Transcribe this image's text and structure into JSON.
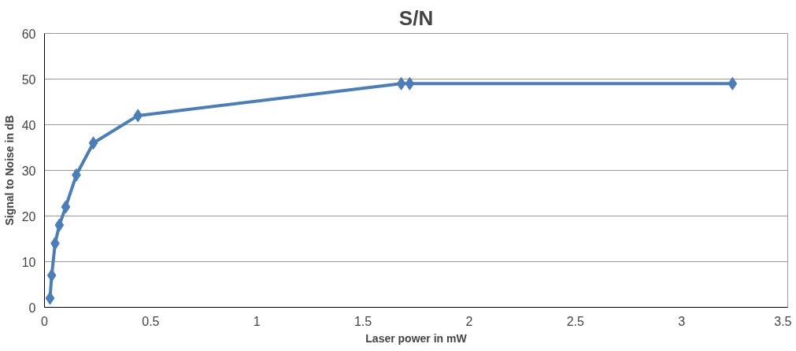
{
  "chart_data": {
    "type": "line",
    "title": "S/N",
    "xlabel": "Laser power in mW",
    "ylabel": "Signal to Noise in dB",
    "x": [
      0.026,
      0.034,
      0.05,
      0.07,
      0.1,
      0.15,
      0.23,
      0.44,
      1.68,
      1.72,
      3.24
    ],
    "series": [
      {
        "color": "#4a7ebb",
        "values": [
          2,
          7,
          14,
          18,
          22,
          29,
          36,
          42,
          49,
          49,
          49
        ]
      }
    ],
    "xlim": [
      0,
      3.5
    ],
    "xticks": [
      0,
      0.5,
      1,
      1.5,
      2,
      2.5,
      3,
      3.5
    ],
    "ylim": [
      0,
      60
    ],
    "yticks": [
      0,
      10,
      20,
      30,
      40,
      50,
      60
    ],
    "grid": "y",
    "marker": "diamond",
    "line_style": "solid"
  }
}
